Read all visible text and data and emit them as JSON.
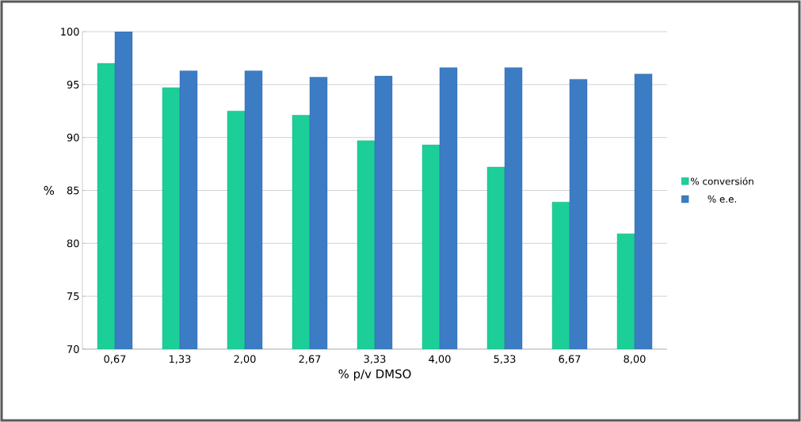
{
  "chart_data": {
    "type": "bar",
    "xlabel": "% p/v DMSO",
    "ylabel": "%",
    "categories": [
      "0,67",
      "1,33",
      "2,00",
      "2,67",
      "3,33",
      "4,00",
      "5,33",
      "6,67",
      "8,00"
    ],
    "series": [
      {
        "name": "% conversión",
        "color": "#1ccf98",
        "values": [
          97.0,
          94.7,
          92.5,
          92.1,
          89.7,
          89.3,
          87.2,
          83.9,
          80.9
        ]
      },
      {
        "name": "% e.e.",
        "color": "#3b7cc4",
        "values": [
          100.0,
          96.3,
          96.3,
          95.7,
          95.8,
          96.6,
          96.6,
          95.5,
          96.0
        ]
      }
    ],
    "ylim": [
      70,
      100
    ],
    "yticks": [
      70,
      75,
      80,
      85,
      90,
      95,
      100
    ],
    "grid": "y",
    "legend": "right"
  }
}
